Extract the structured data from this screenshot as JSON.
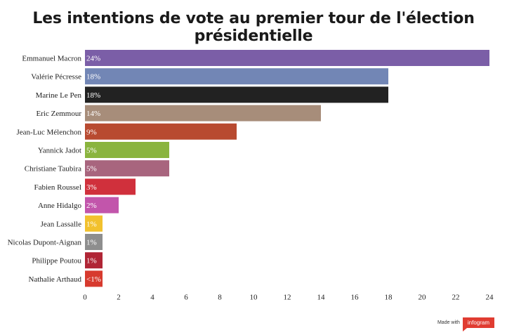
{
  "title": "Les intentions de vote au premier tour de l'élection présidentielle",
  "footer": {
    "made_with": "Made with",
    "brand": "infogram"
  },
  "chart_data": {
    "type": "bar",
    "orientation": "horizontal",
    "title": "Les intentions de vote au premier tour de l'élection présidentielle",
    "xlabel": "",
    "ylabel": "",
    "xlim": [
      0,
      24
    ],
    "grid": false,
    "x_ticks": [
      0,
      2,
      4,
      6,
      8,
      10,
      12,
      14,
      16,
      18,
      20,
      22,
      24
    ],
    "categories": [
      "Emmanuel Macron",
      "Valérie Pécresse",
      "Marine Le Pen",
      "Eric Zemmour",
      "Jean-Luc Mélenchon",
      "Yannick Jadot",
      "Christiane Taubira",
      "Fabien Roussel",
      "Anne Hidalgo",
      "Jean Lassalle",
      "Nicolas Dupont-Aignan",
      "Philippe Poutou",
      "Nathalie Arthaud"
    ],
    "values": [
      24,
      18,
      18,
      14,
      9,
      5,
      5,
      3,
      2,
      1,
      1,
      1,
      1
    ],
    "labels": [
      "24%",
      "18%",
      "18%",
      "14%",
      "9%",
      "5%",
      "5%",
      "3%",
      "2%",
      "1%",
      "1%",
      "1%",
      "<1%"
    ],
    "colors": [
      "#7b5ea7",
      "#7286b5",
      "#222222",
      "#a78d7a",
      "#b84a30",
      "#8ab43e",
      "#a8657e",
      "#d0303c",
      "#c255ab",
      "#f2c12e",
      "#8e8e8e",
      "#b02535",
      "#d73a2e"
    ]
  }
}
